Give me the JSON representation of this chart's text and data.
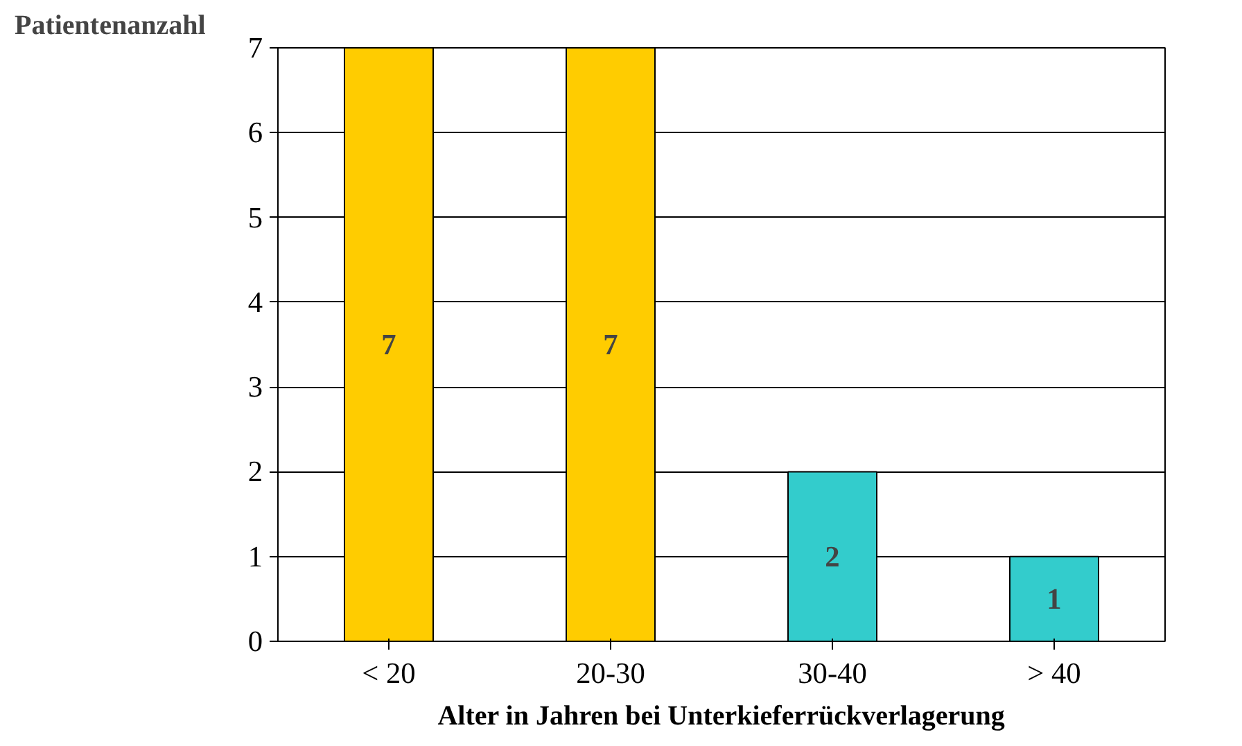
{
  "chart_data": {
    "type": "bar",
    "xlabel": "Alter in Jahren bei Unterkieferrückverlagerung",
    "ylabel": "Patientenanzahl",
    "categories": [
      "< 20",
      "20-30",
      "30-40",
      "> 40"
    ],
    "values": [
      7,
      7,
      2,
      1
    ],
    "colors": [
      "#ffcc00",
      "#ffcc00",
      "#33cccc",
      "#33cccc"
    ],
    "ylim": [
      0,
      7
    ],
    "yticks": [
      0,
      1,
      2,
      3,
      4,
      5,
      6,
      7
    ],
    "grid": "y",
    "data_labels": true
  }
}
